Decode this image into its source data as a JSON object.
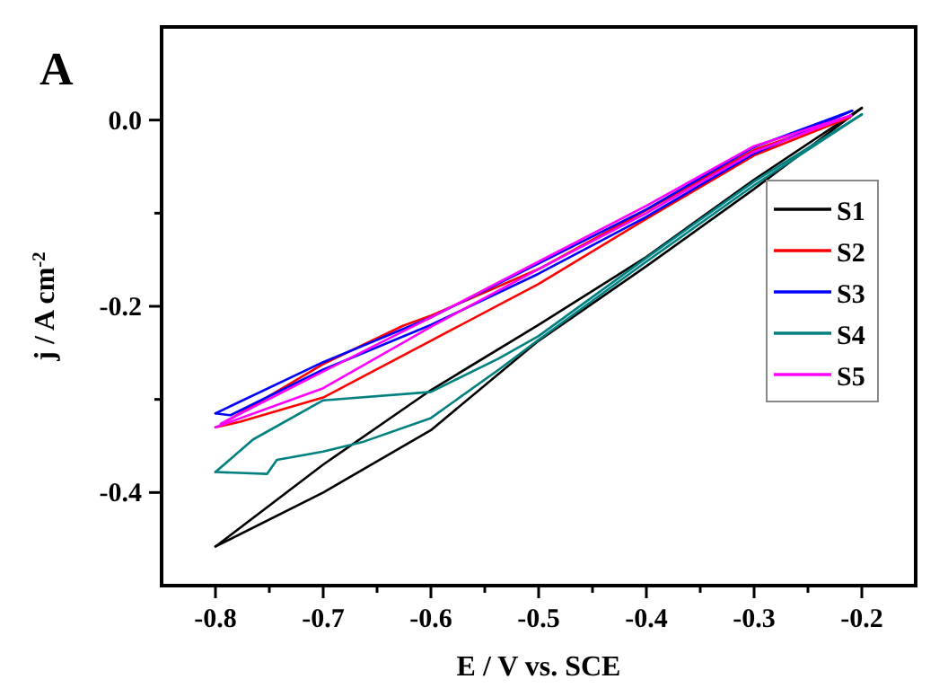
{
  "chart_data": {
    "type": "line",
    "title": "A",
    "xlabel": "E / V vs. SCE",
    "ylabel": "j / A cm$^{-2}$",
    "xlim": [
      -0.85,
      -0.15
    ],
    "ylim": [
      -0.5,
      0.1
    ],
    "xticks": [
      -0.8,
      {
        "value": -0.75,
        "label": null
      },
      -0.7,
      {
        "value": -0.65,
        "label": null
      },
      -0.6,
      {
        "value": -0.55,
        "label": null
      },
      -0.5,
      {
        "value": -0.45,
        "label": null
      },
      -0.4,
      {
        "value": -0.35,
        "label": null
      },
      -0.3,
      {
        "value": -0.25,
        "label": null
      },
      -0.2
    ],
    "yticks": [
      {
        "value": 0,
        "label": "0.0"
      },
      {
        "value": -0.1,
        "label": null
      },
      -0.2,
      {
        "value": -0.3,
        "label": null
      },
      -0.4
    ],
    "grid": false,
    "legend": "right",
    "marker": "none",
    "line_style": "solid",
    "series": [
      {
        "name": "S1",
        "color": "#000000",
        "x": [
          -0.8,
          -0.7,
          -0.6,
          -0.5,
          -0.4,
          -0.3,
          -0.2
        ],
        "values": [
          -0.458,
          -0.4,
          -0.333,
          -0.237,
          -0.157,
          -0.074,
          0.013
        ]
      },
      {
        "color": "#000000",
        "x": [
          -0.8,
          -0.7,
          -0.6,
          -0.5,
          -0.4,
          -0.3,
          -0.2
        ],
        "values": [
          -0.458,
          -0.37,
          -0.29,
          -0.22,
          -0.147,
          -0.064,
          0.013
        ]
      },
      {
        "name": "S2",
        "color": "#ff0000",
        "x": [
          -0.8,
          -0.777,
          -0.7,
          -0.6,
          -0.5,
          -0.4,
          -0.3,
          -0.211
        ],
        "values": [
          -0.33,
          -0.324,
          -0.298,
          -0.237,
          -0.176,
          -0.106,
          -0.038,
          0.003
        ]
      },
      {
        "color": "#ff0000",
        "x": [
          -0.795,
          -0.7,
          -0.626,
          -0.6,
          -0.5,
          -0.4,
          -0.3,
          -0.211
        ],
        "values": [
          -0.327,
          -0.262,
          -0.221,
          -0.21,
          -0.16,
          -0.097,
          -0.032,
          0.003
        ]
      },
      {
        "name": "S3",
        "color": "#0000ff",
        "x": [
          -0.8,
          -0.786,
          -0.7,
          -0.6,
          -0.5,
          -0.4,
          -0.3,
          -0.209
        ],
        "values": [
          -0.315,
          -0.317,
          -0.268,
          -0.22,
          -0.165,
          -0.104,
          -0.036,
          0.01
        ]
      },
      {
        "color": "#0000ff",
        "x": [
          -0.8,
          -0.7,
          -0.6,
          -0.5,
          -0.4,
          -0.3,
          -0.209
        ],
        "values": [
          -0.315,
          -0.26,
          -0.212,
          -0.154,
          -0.096,
          -0.029,
          0.01
        ]
      },
      {
        "name": "S4",
        "color": "#008080",
        "x": [
          -0.8,
          -0.752,
          -0.743,
          -0.7,
          -0.664,
          -0.6,
          -0.537,
          -0.5,
          -0.4,
          -0.3,
          -0.2
        ],
        "values": [
          -0.378,
          -0.38,
          -0.365,
          -0.356,
          -0.346,
          -0.32,
          -0.268,
          -0.236,
          -0.152,
          -0.07,
          0.006
        ]
      },
      {
        "color": "#008080",
        "x": [
          -0.8,
          -0.765,
          -0.7,
          -0.6,
          -0.537,
          -0.5,
          -0.4,
          -0.3,
          -0.2
        ],
        "values": [
          -0.378,
          -0.343,
          -0.301,
          -0.292,
          -0.256,
          -0.232,
          -0.148,
          -0.066,
          0.006
        ]
      },
      {
        "name": "S5",
        "color": "#ff00ff",
        "x": [
          -0.8,
          -0.7,
          -0.6,
          -0.5,
          -0.4,
          -0.3,
          -0.21
        ],
        "values": [
          -0.33,
          -0.288,
          -0.222,
          -0.16,
          -0.1,
          -0.034,
          0.005
        ]
      },
      {
        "color": "#ff00ff",
        "x": [
          -0.795,
          -0.7,
          -0.6,
          -0.5,
          -0.4,
          -0.3,
          -0.21
        ],
        "values": [
          -0.326,
          -0.27,
          -0.212,
          -0.152,
          -0.092,
          -0.028,
          0.005
        ]
      }
    ]
  }
}
